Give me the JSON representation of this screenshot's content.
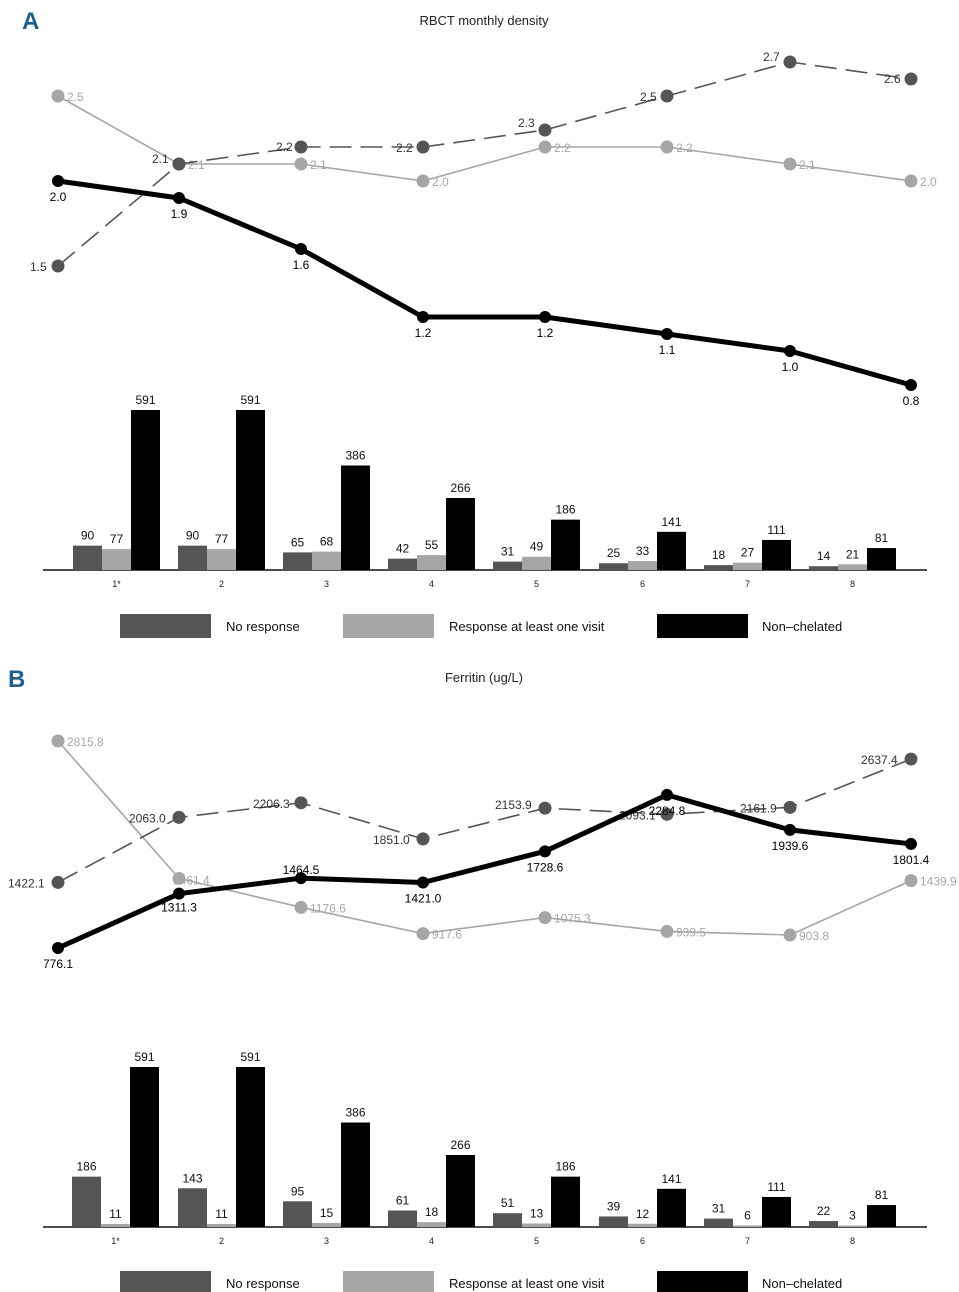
{
  "colors": {
    "no_response": "#555555",
    "response": "#a6a6a6",
    "non_chelated": "#000000",
    "panel_letter": "#1f5f8b"
  },
  "chart_data": [
    {
      "panel": "A",
      "type": "line",
      "title": "RBCT monthly density",
      "x": [
        "1",
        "2",
        "3",
        "4",
        "5",
        "6",
        "7",
        "8"
      ],
      "series": [
        {
          "key": "no_response",
          "values": [
            1.5,
            2.1,
            2.2,
            2.2,
            2.3,
            2.5,
            2.7,
            2.6
          ],
          "labels": [
            "1.5",
            "2.1",
            "2.2",
            "2.2",
            "2.3",
            "2.5",
            "2.7",
            "2.6"
          ],
          "style": "dashed"
        },
        {
          "key": "response",
          "values": [
            2.5,
            2.1,
            2.1,
            2.0,
            2.2,
            2.2,
            2.1,
            2.0
          ],
          "labels": [
            "2.5",
            "2.1",
            "2.1",
            "2.0",
            "2.2",
            "2.2",
            "2.1",
            "2.0"
          ],
          "style": "thin"
        },
        {
          "key": "non_chelated",
          "values": [
            2.0,
            1.9,
            1.6,
            1.2,
            1.2,
            1.1,
            1.0,
            0.8
          ],
          "labels": [
            "2.0",
            "1.9",
            "1.6",
            "1.2",
            "1.2",
            "1.1",
            "1.0",
            "0.8"
          ],
          "style": "thick"
        }
      ]
    },
    {
      "panel": "A",
      "type": "bar",
      "categories": [
        "1*",
        "2",
        "3",
        "4",
        "5",
        "6",
        "7",
        "8"
      ],
      "series": [
        {
          "name": "No response",
          "key": "no_response",
          "values": [
            90,
            90,
            65,
            42,
            31,
            25,
            18,
            14
          ]
        },
        {
          "name": "Response at least one visit",
          "key": "response",
          "values": [
            77,
            77,
            68,
            55,
            49,
            33,
            27,
            21
          ]
        },
        {
          "name": "Non–chelated",
          "key": "non_chelated",
          "values": [
            591,
            591,
            386,
            266,
            186,
            141,
            111,
            81
          ]
        }
      ],
      "legend_position": "bottom"
    },
    {
      "panel": "B",
      "type": "line",
      "title": "Ferritin (ug/L)",
      "x": [
        "1",
        "2",
        "3",
        "4",
        "5",
        "6",
        "7",
        "8"
      ],
      "series": [
        {
          "key": "no_response",
          "values": [
            1422.1,
            2063.0,
            2206.3,
            1851.0,
            2153.9,
            2093.1,
            2161.9,
            2637.4
          ],
          "labels": [
            "1422.1",
            "2063.0",
            "2206.3",
            "1851.0",
            "2153.9",
            "2093.1",
            "2161.9",
            "2637.4"
          ],
          "style": "dashed"
        },
        {
          "key": "response",
          "values": [
            2815.8,
            1461.4,
            1176.6,
            917.6,
            1075.3,
            939.5,
            903.8,
            1439.9
          ],
          "labels": [
            "2815.8",
            "1461.4",
            "1176.6",
            "917.6",
            "1075.3",
            "939.5",
            "903.8",
            "1439.9"
          ],
          "style": "thin"
        },
        {
          "key": "non_chelated",
          "values": [
            776.1,
            1311.3,
            1464.5,
            1421.0,
            1728.6,
            2284.8,
            1939.6,
            1801.4
          ],
          "labels": [
            "776.1",
            "1311.3",
            "1464.5",
            "1421.0",
            "1728.6",
            "2284.8",
            "1939.6",
            "1801.4"
          ],
          "style": "thick"
        }
      ]
    },
    {
      "panel": "B",
      "type": "bar",
      "categories": [
        "1*",
        "2",
        "3",
        "4",
        "5",
        "6",
        "7",
        "8"
      ],
      "series": [
        {
          "name": "No response",
          "key": "no_response",
          "values": [
            186,
            143,
            95,
            61,
            51,
            39,
            31,
            22
          ]
        },
        {
          "name": "Response at least one visit",
          "key": "response",
          "values": [
            11,
            11,
            15,
            18,
            13,
            12,
            6,
            3
          ]
        },
        {
          "name": "Non–chelated",
          "key": "non_chelated",
          "values": [
            591,
            591,
            386,
            266,
            186,
            141,
            111,
            81
          ]
        }
      ],
      "legend_position": "bottom"
    }
  ]
}
